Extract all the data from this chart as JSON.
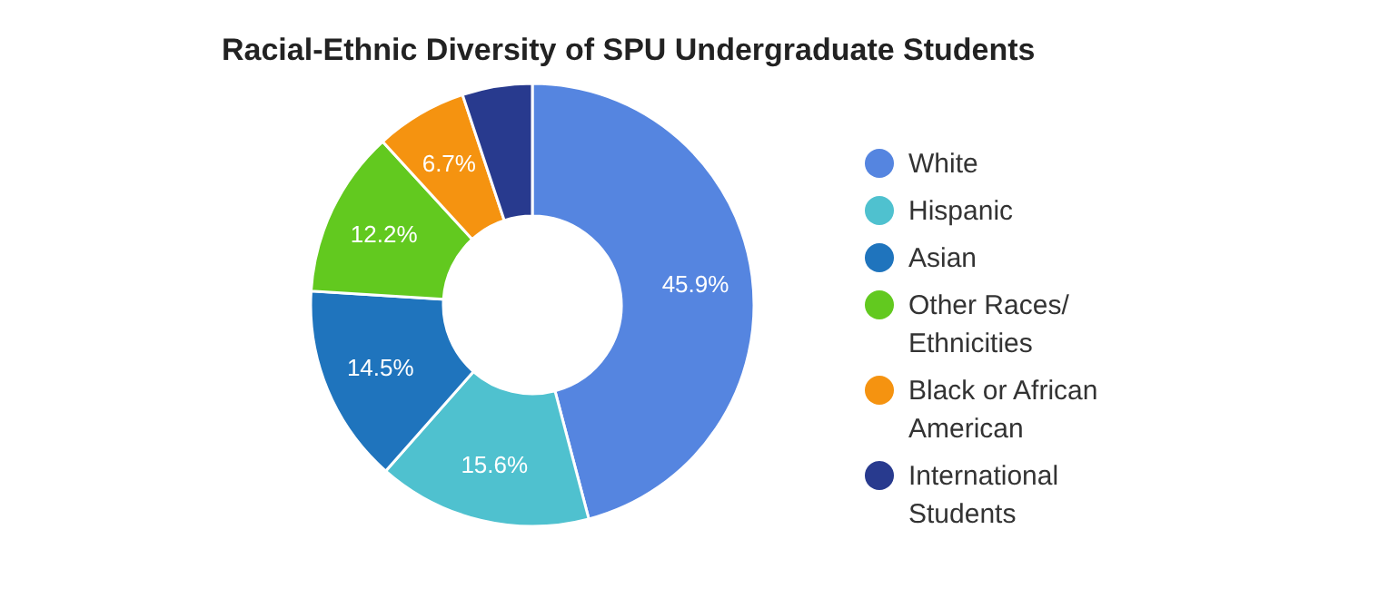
{
  "chart_data": {
    "type": "donut",
    "title": "Racial-Ethnic Diversity of SPU Undergraduate Students",
    "categories": [
      "White",
      "Hispanic",
      "Asian",
      "Other Races/ Ethnicities",
      "Black or African American",
      "International Students"
    ],
    "values": [
      45.9,
      15.6,
      14.5,
      12.2,
      6.7,
      5.1
    ],
    "colors": [
      "#5585e0",
      "#4fc1cf",
      "#1f74bd",
      "#62c91f",
      "#f59310",
      "#283a8e"
    ],
    "value_labels": [
      "45.9%",
      "15.6%",
      "14.5%",
      "12.2%",
      "6.7%",
      null
    ],
    "legend": "right"
  }
}
